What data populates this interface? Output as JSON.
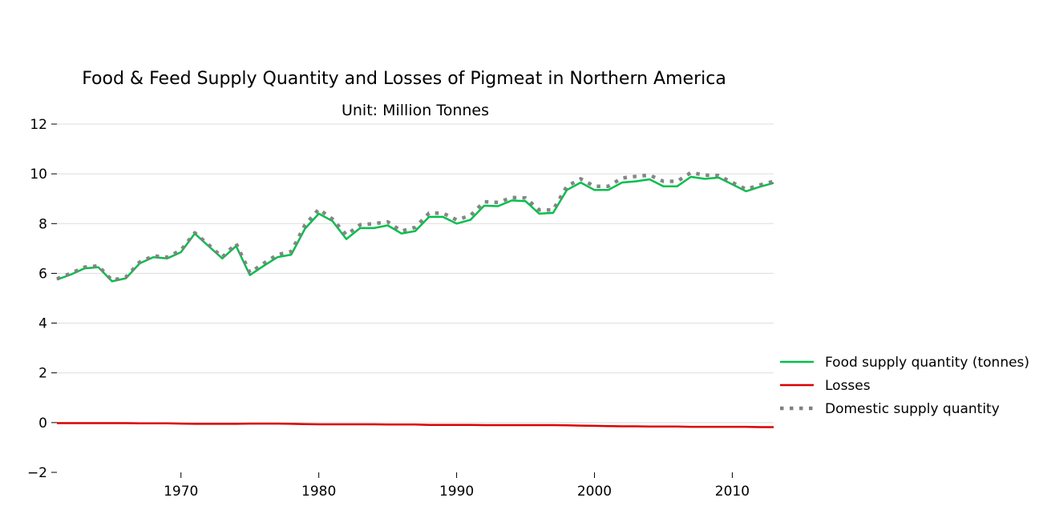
{
  "chart_data": {
    "type": "line",
    "title": "Food & Feed Supply Quantity and Losses of Pigmeat in Northern America",
    "subtitle": "Unit: Million Tonnes",
    "xlabel": "",
    "ylabel": "",
    "xlim": [
      1961,
      2013
    ],
    "ylim": [
      -2,
      12
    ],
    "y_ticks": [
      -2,
      0,
      2,
      4,
      6,
      8,
      10,
      12
    ],
    "y_tick_labels": [
      "−2",
      "0",
      "2",
      "4",
      "6",
      "8",
      "10",
      "12"
    ],
    "x_ticks": [
      1970,
      1980,
      1990,
      2000,
      2010
    ],
    "x_tick_labels": [
      "1970",
      "1980",
      "1990",
      "2000",
      "2010"
    ],
    "grid": "horizontal",
    "legend_position": "right",
    "x": [
      1961,
      1962,
      1963,
      1964,
      1965,
      1966,
      1967,
      1968,
      1969,
      1970,
      1971,
      1972,
      1973,
      1974,
      1975,
      1976,
      1977,
      1978,
      1979,
      1980,
      1981,
      1982,
      1983,
      1984,
      1985,
      1986,
      1987,
      1988,
      1989,
      1990,
      1991,
      1992,
      1993,
      1994,
      1995,
      1996,
      1997,
      1998,
      1999,
      2000,
      2001,
      2002,
      2003,
      2004,
      2005,
      2006,
      2007,
      2008,
      2009,
      2010,
      2011,
      2012,
      2013
    ],
    "series": [
      {
        "name": "Food supply quantity (tonnes)",
        "color": "#00c04b",
        "style": "solid",
        "values": [
          5.75,
          5.95,
          6.2,
          6.25,
          5.68,
          5.8,
          6.4,
          6.65,
          6.6,
          6.85,
          7.6,
          7.1,
          6.6,
          7.1,
          5.93,
          6.3,
          6.65,
          6.75,
          7.8,
          8.4,
          8.1,
          7.38,
          7.82,
          7.82,
          7.93,
          7.6,
          7.7,
          8.27,
          8.27,
          8.0,
          8.15,
          8.72,
          8.7,
          8.93,
          8.9,
          8.4,
          8.43,
          9.35,
          9.65,
          9.35,
          9.35,
          9.65,
          9.7,
          9.78,
          9.5,
          9.5,
          9.88,
          9.8,
          9.85,
          9.58,
          9.3,
          9.48,
          9.63
        ]
      },
      {
        "name": "Losses",
        "color": "#dd0000",
        "style": "solid",
        "values": [
          -0.02,
          -0.02,
          -0.02,
          -0.02,
          -0.02,
          -0.02,
          -0.03,
          -0.03,
          -0.03,
          -0.04,
          -0.05,
          -0.05,
          -0.05,
          -0.05,
          -0.04,
          -0.04,
          -0.04,
          -0.05,
          -0.06,
          -0.07,
          -0.07,
          -0.07,
          -0.07,
          -0.07,
          -0.08,
          -0.08,
          -0.08,
          -0.09,
          -0.09,
          -0.09,
          -0.09,
          -0.1,
          -0.1,
          -0.1,
          -0.1,
          -0.1,
          -0.1,
          -0.11,
          -0.12,
          -0.13,
          -0.14,
          -0.15,
          -0.15,
          -0.16,
          -0.16,
          -0.16,
          -0.17,
          -0.17,
          -0.17,
          -0.17,
          -0.17,
          -0.18,
          -0.18
        ]
      },
      {
        "name": "Domestic supply quantity",
        "color": "#808080",
        "style": "dotted",
        "values": [
          5.78,
          6.0,
          6.25,
          6.3,
          5.72,
          5.85,
          6.45,
          6.7,
          6.65,
          6.93,
          7.63,
          7.15,
          6.65,
          7.2,
          6.03,
          6.4,
          6.75,
          6.88,
          7.95,
          8.58,
          8.18,
          7.55,
          7.95,
          8.0,
          8.07,
          7.7,
          7.85,
          8.42,
          8.42,
          8.15,
          8.32,
          8.88,
          8.85,
          9.05,
          9.03,
          8.55,
          8.55,
          9.5,
          9.8,
          9.5,
          9.5,
          9.83,
          9.9,
          9.95,
          9.7,
          9.7,
          10.05,
          9.95,
          9.93,
          9.65,
          9.38,
          9.55,
          9.7
        ]
      }
    ]
  }
}
